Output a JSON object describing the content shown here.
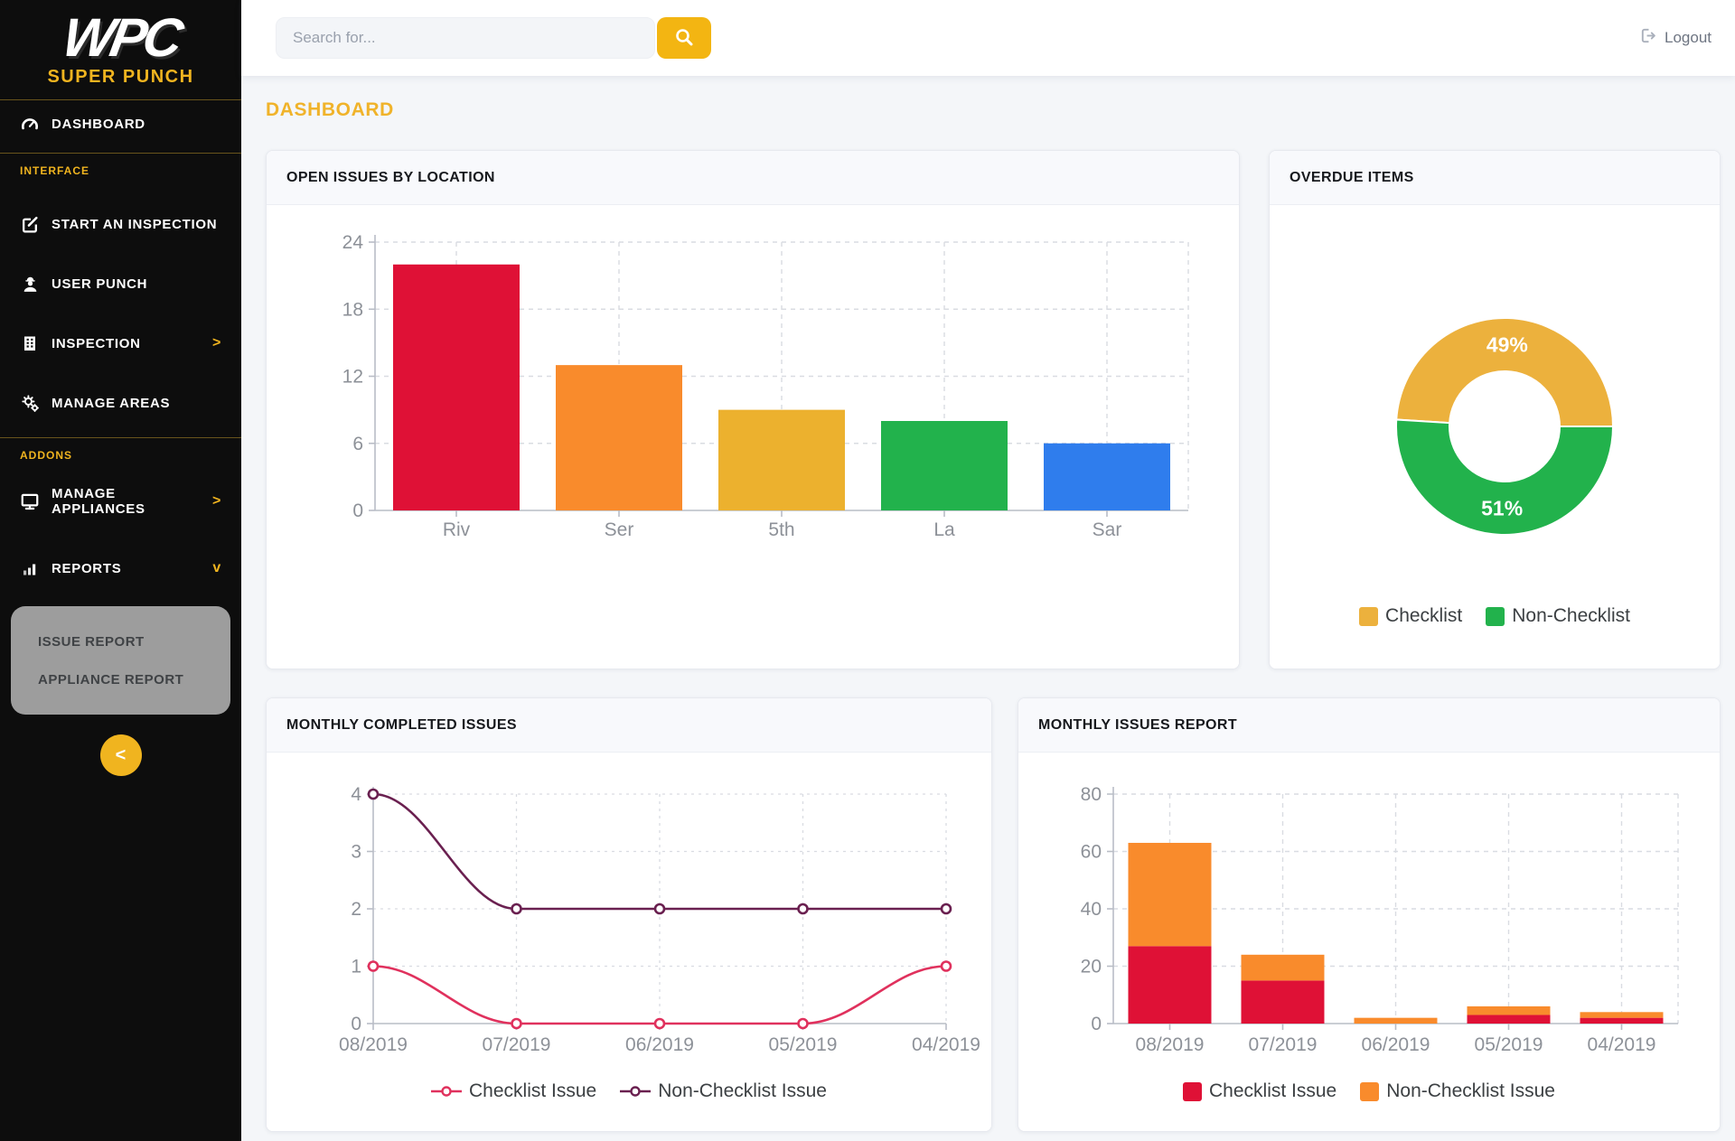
{
  "brand": {
    "logo": "WPC",
    "subtitle": "SUPER PUNCH"
  },
  "topbar": {
    "search_placeholder": "Search for...",
    "logout_label": "Logout"
  },
  "page": {
    "title": "DASHBOARD"
  },
  "sidebar": {
    "sections": {
      "interface": "INTERFACE",
      "addons": "ADDONS"
    },
    "items": [
      {
        "label": "DASHBOARD"
      },
      {
        "label": "START AN INSPECTION"
      },
      {
        "label": "USER PUNCH"
      },
      {
        "label": "INSPECTION",
        "chevron": ">"
      },
      {
        "label": "MANAGE AREAS"
      },
      {
        "label": "MANAGE APPLIANCES",
        "chevron": ">"
      },
      {
        "label": "REPORTS",
        "chevron": "v"
      }
    ],
    "submenu": [
      "ISSUE REPORT",
      "APPLIANCE REPORT"
    ],
    "collapse_label": "<"
  },
  "icons": {
    "dashboard": "speedometer",
    "start_inspection": "edit-square",
    "user_punch": "worker-hardhat",
    "inspection": "building",
    "manage_areas": "gears",
    "manage_appliances": "monitor",
    "reports": "bar-chart",
    "search": "magnifier",
    "logout": "sign-out",
    "collapse": "<"
  },
  "colors": {
    "accent_yellow": "#f0b41f",
    "sidebar_bg": "#0d0d0d",
    "page_bg": "#f4f6f9",
    "axis_text": "#8d9198",
    "legend_text": "#3c4043"
  },
  "chart_data": [
    {
      "id": "open_issues_by_location",
      "type": "bar",
      "title": "OPEN ISSUES BY LOCATION",
      "categories": [
        "Riv",
        "Ser",
        "5th",
        "La",
        "Sar"
      ],
      "values": [
        22,
        13,
        9,
        8,
        6
      ],
      "bar_colors": [
        "#df1136",
        "#f98b2c",
        "#ecb12e",
        "#22b24c",
        "#2f7ded"
      ],
      "ylim": [
        0,
        24
      ],
      "yticks": [
        0,
        6,
        12,
        18,
        24
      ],
      "grid": true,
      "legend": false
    },
    {
      "id": "overdue_items",
      "type": "pie",
      "title": "OVERDUE ITEMS",
      "donut": true,
      "labels": [
        "Checklist",
        "Non-Checklist"
      ],
      "values": [
        49,
        51
      ],
      "slice_labels": [
        "49%",
        "51%"
      ],
      "colors": [
        "#ecb13d",
        "#22b24c"
      ],
      "legend_position": "bottom"
    },
    {
      "id": "monthly_completed_issues",
      "type": "line",
      "title": "MONTHLY COMPLETED ISSUES",
      "x": [
        "08/2019",
        "07/2019",
        "06/2019",
        "05/2019",
        "04/2019"
      ],
      "series": [
        {
          "name": "Checklist Issue",
          "color": "#e0315d",
          "values": [
            1,
            0,
            0,
            0,
            1
          ]
        },
        {
          "name": "Non-Checklist Issue",
          "color": "#6a2050",
          "values": [
            4,
            2,
            2,
            2,
            2
          ]
        }
      ],
      "ylim": [
        0,
        4
      ],
      "yticks": [
        0,
        1,
        2,
        3,
        4
      ],
      "grid": true,
      "smooth": true,
      "legend_position": "bottom"
    },
    {
      "id": "monthly_issues_report",
      "type": "bar",
      "stacked": true,
      "title": "MONTHLY ISSUES REPORT",
      "categories": [
        "08/2019",
        "07/2019",
        "06/2019",
        "05/2019",
        "04/2019"
      ],
      "series": [
        {
          "name": "Checklist Issue",
          "color": "#df1136",
          "values": [
            27,
            15,
            0,
            3,
            2
          ]
        },
        {
          "name": "Non-Checklist Issue",
          "color": "#f98b2c",
          "values": [
            36,
            9,
            2,
            3,
            2
          ]
        }
      ],
      "ylim": [
        0,
        80
      ],
      "yticks": [
        0,
        20,
        40,
        60,
        80
      ],
      "grid": true,
      "legend_position": "bottom"
    }
  ]
}
